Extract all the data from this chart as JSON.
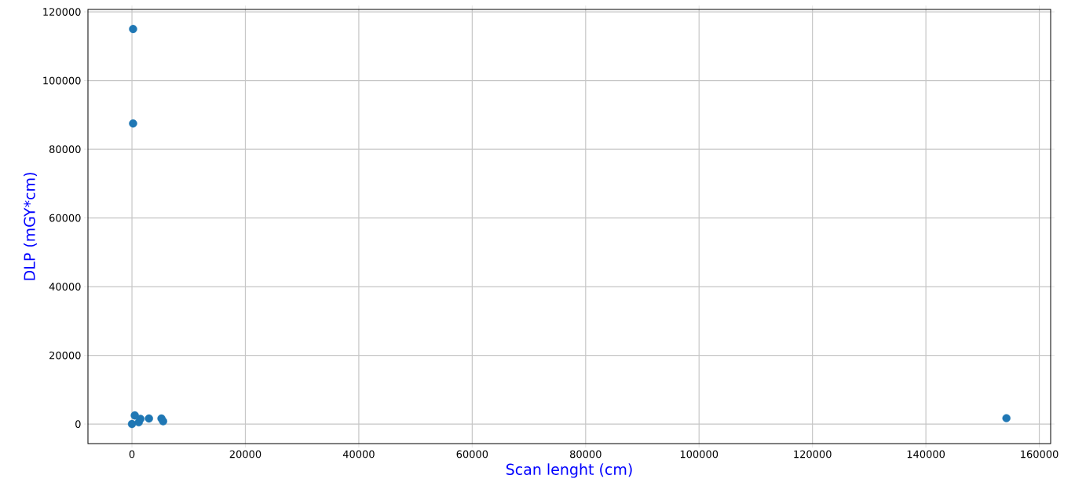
{
  "chart_data": {
    "type": "scatter",
    "xlabel": "Scan lenght (cm)",
    "ylabel": "DLP (mGY*cm)",
    "x": [
      200,
      200,
      0,
      500,
      1200,
      1500,
      3000,
      5200,
      5500,
      154200
    ],
    "values": [
      115000,
      87500,
      0,
      2500,
      500,
      1500,
      1600,
      1600,
      800,
      1700
    ],
    "color": "#1f77b4",
    "marker": "circle",
    "grid": true,
    "xlim": [
      -7760,
      162000
    ],
    "ylim": [
      -5700,
      120700
    ],
    "xticks": [
      0,
      20000,
      40000,
      60000,
      80000,
      100000,
      120000,
      140000,
      160000
    ],
    "yticks": [
      0,
      20000,
      40000,
      60000,
      80000,
      100000,
      120000
    ]
  }
}
